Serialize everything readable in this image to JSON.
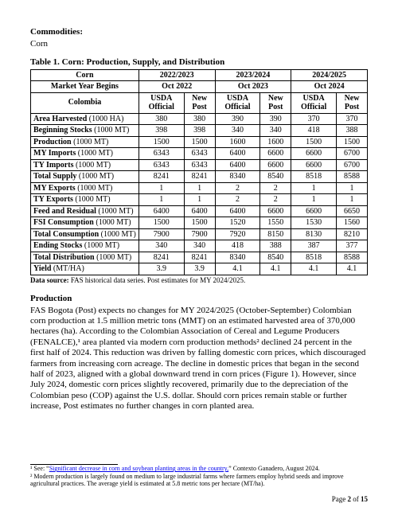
{
  "commodities_label": "Commodities:",
  "commodity_name": "Corn",
  "table_title": "Table 1. Corn: Production, Supply, and Distribution",
  "header": {
    "product": "Corn",
    "market_year_begins": "Market Year Begins",
    "country": "Colombia",
    "years": [
      "2022/2023",
      "2023/2024",
      "2024/2025"
    ],
    "months": [
      "Oct 2022",
      "Oct 2023",
      "Oct 2024"
    ],
    "subcols": [
      "USDA Official",
      "New Post"
    ]
  },
  "rows": [
    {
      "label": "Area Harvested",
      "unit": "(1000 HA)",
      "v": [
        "380",
        "380",
        "390",
        "390",
        "370",
        "370"
      ]
    },
    {
      "label": "Beginning Stocks",
      "unit": "(1000 MT)",
      "v": [
        "398",
        "398",
        "340",
        "340",
        "418",
        "388"
      ]
    },
    {
      "label": "Production",
      "unit": "(1000 MT)",
      "v": [
        "1500",
        "1500",
        "1600",
        "1600",
        "1500",
        "1500"
      ]
    },
    {
      "label": "MY Imports",
      "unit": "(1000 MT)",
      "v": [
        "6343",
        "6343",
        "6400",
        "6600",
        "6600",
        "6700"
      ]
    },
    {
      "label": "TY Imports",
      "unit": "(1000 MT)",
      "v": [
        "6343",
        "6343",
        "6400",
        "6600",
        "6600",
        "6700"
      ]
    },
    {
      "label": "Total Supply",
      "unit": "(1000 MT)",
      "v": [
        "8241",
        "8241",
        "8340",
        "8540",
        "8518",
        "8588"
      ]
    },
    {
      "label": "MY Exports",
      "unit": "(1000 MT)",
      "v": [
        "1",
        "1",
        "2",
        "2",
        "1",
        "1"
      ]
    },
    {
      "label": "TY Exports",
      "unit": "(1000 MT)",
      "v": [
        "1",
        "1",
        "2",
        "2",
        "1",
        "1"
      ]
    },
    {
      "label": "Feed and Residual",
      "unit": "(1000 MT)",
      "v": [
        "6400",
        "6400",
        "6400",
        "6600",
        "6600",
        "6650"
      ]
    },
    {
      "label": "FSI Consumption",
      "unit": "(1000 MT)",
      "v": [
        "1500",
        "1500",
        "1520",
        "1550",
        "1530",
        "1560"
      ]
    },
    {
      "label": "Total Consumption",
      "unit": "(1000 MT)",
      "v": [
        "7900",
        "7900",
        "7920",
        "8150",
        "8130",
        "8210"
      ]
    },
    {
      "label": "Ending Stocks",
      "unit": "(1000 MT)",
      "v": [
        "340",
        "340",
        "418",
        "388",
        "387",
        "377"
      ]
    },
    {
      "label": "Total Distribution",
      "unit": "(1000 MT)",
      "v": [
        "8241",
        "8241",
        "8340",
        "8540",
        "8518",
        "8588"
      ]
    },
    {
      "label": "Yield",
      "unit": "(MT/HA)",
      "v": [
        "3.9",
        "3.9",
        "4.1",
        "4.1",
        "4.1",
        "4.1"
      ]
    }
  ],
  "data_source": "Data source: FAS historical data series. Post estimates for MY 2024/2025.",
  "production_heading": "Production",
  "production_body": "FAS Bogota (Post) expects no changes for MY 2024/2025 (October-September) Colombian corn production at 1.5 million metric tons (MMT) on an estimated harvested area of 370,000 hectares (ha). According to the Colombian Association of Cereal and Legume Producers (FENALCE),¹ area planted via modern corn production methods² declined 24 percent in the first half of 2024. This reduction was driven by falling domestic corn prices, which discouraged farmers from increasing corn acreage. The decline in domestic prices that began in the second half of 2023, aligned with a global downward trend in corn prices (Figure 1). However, since July 2024, domestic corn prices slightly recovered, primarily due to the depreciation of the Colombian peso (COP) against the U.S. dollar. Should corn prices remain stable or further increase, Post estimates no further changes in corn planted area.",
  "footnotes": {
    "f1_pre": "¹ See: “",
    "f1_link": "Significant decrease in corn and soybean planting areas in the country,",
    "f1_post": "” Contexto Ganadero, August 2024.",
    "f2": "² Modern production is largely found on medium to large industrial farms where farmers employ hybrid seeds and improve agricultural practices. The average yield is estimated at 5.8 metric tons per hectare (MT/ha)."
  },
  "page_label_pre": "Page ",
  "page_num": "2",
  "page_label_mid": " of ",
  "page_total": "15"
}
